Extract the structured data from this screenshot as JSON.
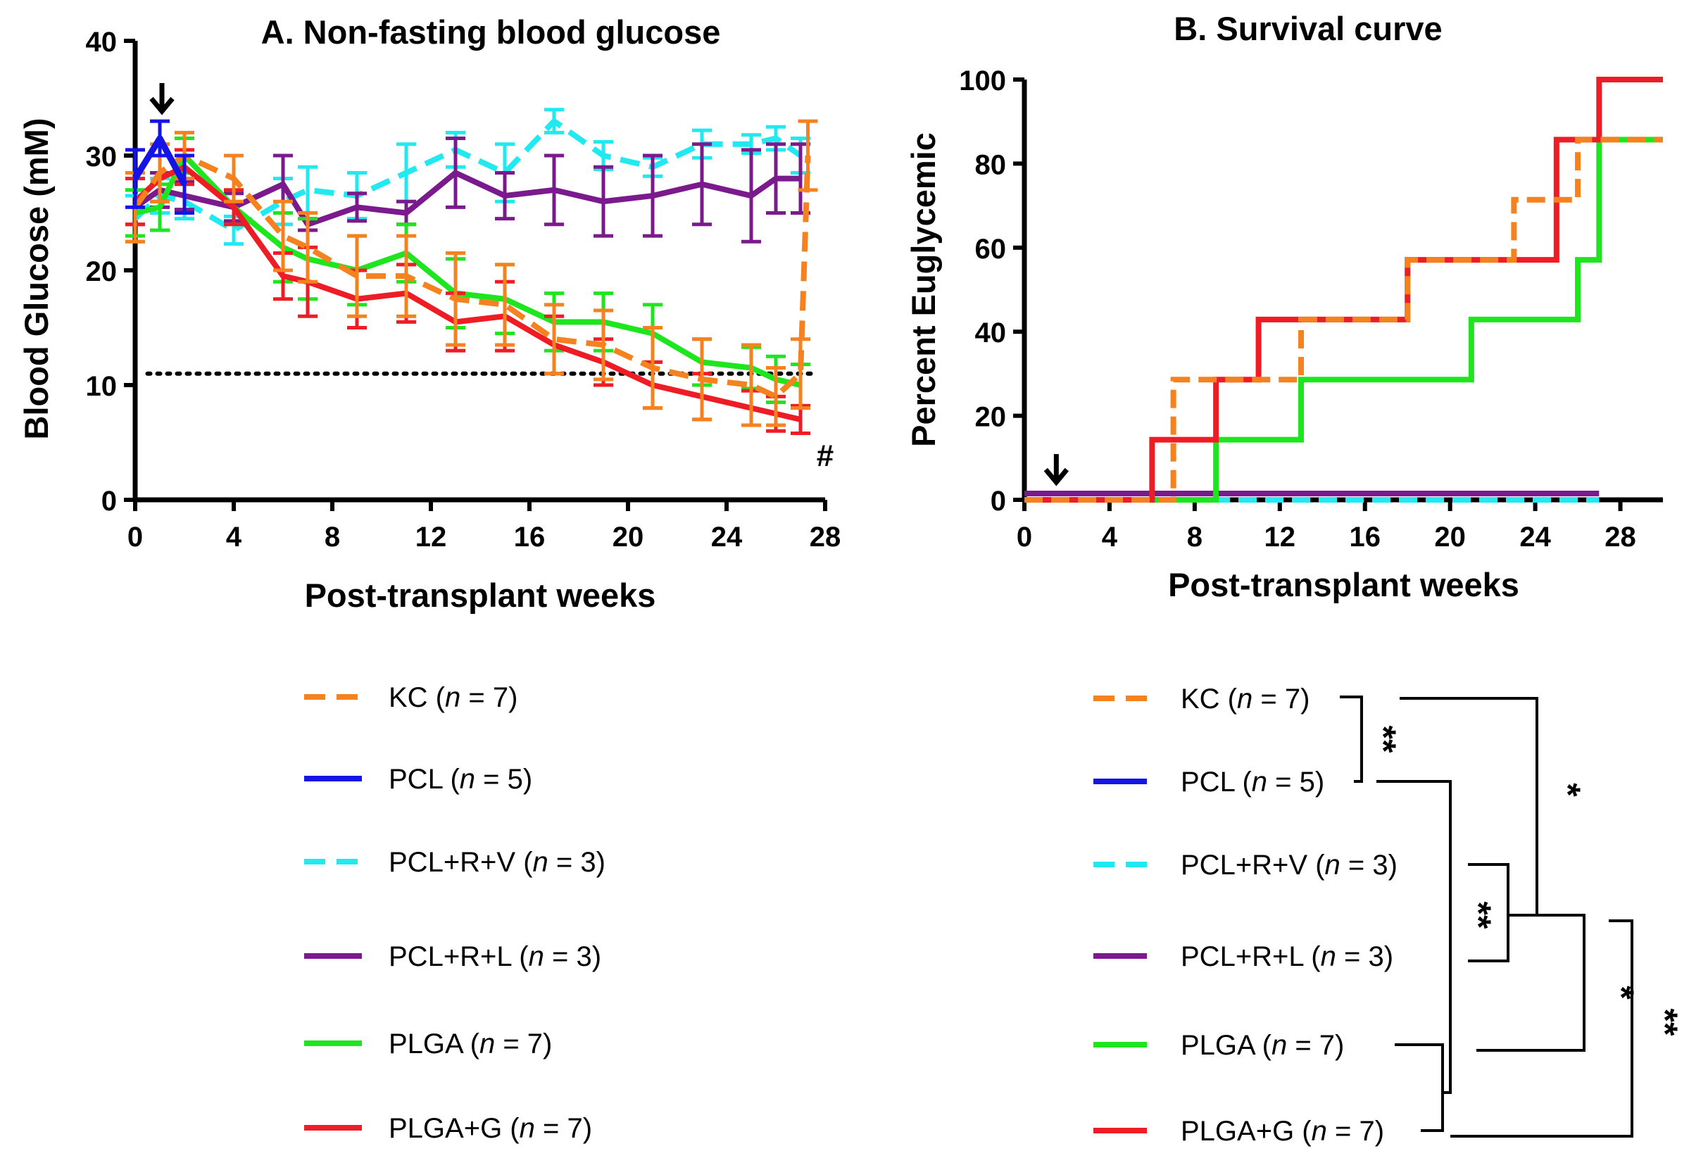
{
  "colors": {
    "KC": "#f5821f",
    "PCL": "#1414e6",
    "PCLRV": "#21e9f0",
    "PCLRL": "#7a1a8c",
    "PLGA": "#1ee61e",
    "PLGAG": "#ee1c24",
    "axis": "#000000"
  },
  "legend": [
    {
      "key": "KC",
      "label": "KC (",
      "n": "7",
      "dashed": true
    },
    {
      "key": "PCL",
      "label": "PCL (",
      "n": "5",
      "dashed": false
    },
    {
      "key": "PCLRV",
      "label": "PCL+R+V (",
      "n": "3",
      "dashed": true
    },
    {
      "key": "PCLRL",
      "label": "PCL+R+L (",
      "n": "3",
      "dashed": false
    },
    {
      "key": "PLGA",
      "label": "PLGA (",
      "n": "7",
      "dashed": false
    },
    {
      "key": "PLGAG",
      "label": "PLGA+G (",
      "n": "7",
      "dashed": false
    }
  ],
  "legend_n_symbol": "n",
  "legend_eq": " = ",
  "legend_close": ")",
  "significance": {
    "b1": "**",
    "b2": "*",
    "b3": "**",
    "b4": "*",
    "b5": "**"
  },
  "chart_data": [
    {
      "id": "A",
      "type": "line",
      "title": "A. Non-fasting blood glucose",
      "xlabel": "Post-transplant weeks",
      "ylabel": "Blood Glucose (mM)",
      "xlim": [
        0,
        28
      ],
      "ylim": [
        0,
        40
      ],
      "xticks": [
        0,
        4,
        8,
        12,
        16,
        20,
        24,
        28
      ],
      "yticks": [
        0,
        10,
        20,
        30,
        40
      ],
      "threshold": 11,
      "threshold_label": "",
      "arrow_x": 1,
      "annotation": "#",
      "series": [
        {
          "key": "PCLRV",
          "name": "PCL+R+V",
          "dashed": true,
          "x": [
            0,
            1,
            2,
            4,
            6,
            7,
            9,
            11,
            13,
            15,
            17,
            19,
            21,
            23,
            25,
            26,
            27
          ],
          "y": [
            24.5,
            26.5,
            26,
            23.5,
            26,
            27,
            26.5,
            28.5,
            30.5,
            28.5,
            33,
            30,
            29,
            31,
            31,
            31.5,
            30
          ],
          "err": [
            2,
            1.5,
            1.5,
            1.2,
            2,
            2,
            2,
            2.5,
            1.5,
            2.5,
            1,
            1.2,
            0.8,
            1.2,
            0.8,
            1,
            1.5
          ]
        },
        {
          "key": "PCLRL",
          "name": "PCL+R+L",
          "dashed": false,
          "x": [
            0,
            1,
            2,
            4,
            6,
            7,
            9,
            11,
            13,
            15,
            17,
            19,
            21,
            23,
            25,
            26,
            27
          ],
          "y": [
            25.5,
            27,
            26.5,
            25.5,
            27.5,
            24,
            25.5,
            25,
            28.5,
            26.5,
            27,
            26,
            26.5,
            27.5,
            26.5,
            28,
            28
          ],
          "err": [
            1.5,
            1.5,
            1.2,
            1.2,
            2.5,
            0.5,
            1.2,
            1,
            3,
            2,
            3,
            3,
            3.5,
            3.5,
            4,
            3,
            3
          ]
        },
        {
          "key": "PLGA",
          "name": "PLGA",
          "dashed": false,
          "x": [
            0,
            1,
            2,
            4,
            6,
            7,
            9,
            11,
            13,
            15,
            17,
            19,
            21,
            23,
            25,
            26,
            27
          ],
          "y": [
            25,
            25.5,
            30,
            25.5,
            22,
            21,
            20,
            21.5,
            18,
            17.5,
            15.5,
            15.5,
            14.5,
            12,
            11.5,
            10.5,
            10
          ],
          "err": [
            2,
            2,
            1.5,
            1.5,
            3,
            3.5,
            3,
            2.5,
            3,
            3,
            2.5,
            2.5,
            2.5,
            2,
            1.8,
            2,
            1.8
          ]
        },
        {
          "key": "PLGAG",
          "name": "PLGA+G",
          "dashed": false,
          "x": [
            0,
            1,
            2,
            4,
            6,
            7,
            9,
            11,
            13,
            15,
            17,
            19,
            21,
            23,
            25,
            26,
            27
          ],
          "y": [
            26,
            28,
            29,
            25.5,
            19.5,
            19,
            17.5,
            18,
            15.5,
            16,
            13.5,
            12,
            10,
            9,
            8,
            7.5,
            7
          ],
          "err": [
            2,
            2,
            1.5,
            1.5,
            2,
            3,
            2.5,
            2.5,
            2.5,
            3,
            2.5,
            2,
            2,
            2,
            1.5,
            1.5,
            1.2
          ]
        },
        {
          "key": "KC",
          "name": "KC",
          "dashed": true,
          "x": [
            0,
            1,
            2,
            4,
            6,
            7,
            9,
            11,
            13,
            15,
            17,
            19,
            21,
            23,
            25,
            26,
            27,
            27.3
          ],
          "y": [
            25.5,
            28.5,
            30,
            28,
            23,
            22,
            19.5,
            19.5,
            17.5,
            17,
            14,
            13.5,
            11.5,
            10.5,
            10,
            9,
            11,
            30
          ],
          "err": [
            3,
            2.5,
            2,
            2,
            3,
            3,
            3.5,
            3.5,
            4,
            3.5,
            3,
            3,
            3.5,
            3.5,
            3.5,
            2.5,
            3,
            3
          ]
        },
        {
          "key": "PCL",
          "name": "PCL",
          "dashed": false,
          "x": [
            0,
            1,
            2
          ],
          "y": [
            28,
            31.5,
            27.5
          ],
          "err": [
            2.5,
            1.5,
            2.5
          ]
        }
      ]
    },
    {
      "id": "B",
      "type": "line",
      "title": "B. Survival curve",
      "xlabel": "Post-transplant weeks",
      "ylabel": "Percent Euglycemic",
      "xlim": [
        0,
        30
      ],
      "ylim": [
        0,
        100
      ],
      "xticks": [
        0,
        4,
        8,
        12,
        16,
        20,
        24,
        28
      ],
      "yticks": [
        0,
        20,
        40,
        60,
        80,
        100
      ],
      "arrow_x": 1.5,
      "series": [
        {
          "key": "PCLRL",
          "name": "PCL+R+L",
          "dashed": false,
          "step": true,
          "x": [
            0,
            27
          ],
          "y": [
            1.5,
            1.5
          ]
        },
        {
          "key": "PCLRV",
          "name": "PCL+R+V",
          "dashed": true,
          "step": true,
          "x": [
            0,
            27
          ],
          "y": [
            0,
            0
          ]
        },
        {
          "key": "PCL",
          "name": "PCL",
          "dashed": false,
          "step": true,
          "x": [
            0,
            2.7
          ],
          "y": [
            0,
            0
          ]
        },
        {
          "key": "PLGA",
          "name": "PLGA",
          "dashed": false,
          "step": true,
          "x": [
            0,
            9,
            13,
            21,
            26,
            27,
            30
          ],
          "y": [
            0,
            14.3,
            28.6,
            42.9,
            57.1,
            85.7,
            85.7
          ]
        },
        {
          "key": "PLGAG",
          "name": "PLGA+G",
          "dashed": false,
          "step": true,
          "x": [
            0,
            6,
            9,
            11,
            18,
            25,
            27,
            30
          ],
          "y": [
            0,
            14.3,
            28.6,
            42.9,
            57.1,
            85.7,
            100,
            100
          ]
        },
        {
          "key": "KC",
          "name": "KC",
          "dashed": true,
          "step": true,
          "x": [
            0,
            7,
            13,
            18,
            23,
            26,
            30
          ],
          "y": [
            0,
            28.6,
            42.9,
            57.1,
            71.4,
            85.7,
            85.7
          ]
        }
      ]
    }
  ]
}
